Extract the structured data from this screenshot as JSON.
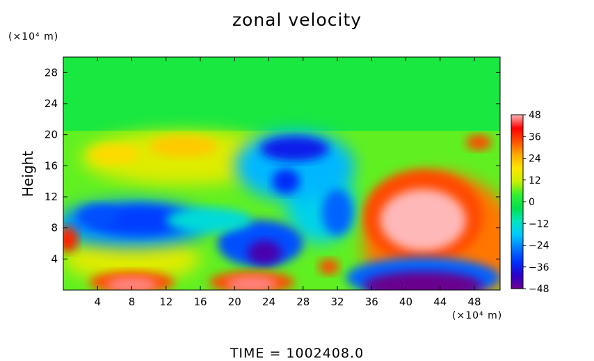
{
  "title": "zonal velocity",
  "footer": "TIME = 1002408.0",
  "colors": {
    "background": "#ffffff",
    "scale": [
      "#6b008e",
      "#2a00c8",
      "#0030ff",
      "#0078ff",
      "#00c8ff",
      "#00e6c0",
      "#00e050",
      "#30f030",
      "#c8f000",
      "#ffe600",
      "#ffaa00",
      "#ff5000",
      "#ff0000",
      "#ffb8b8"
    ]
  },
  "chart_data": {
    "type": "heatmap",
    "title": "zonal velocity",
    "xlabel": "",
    "ylabel": "Height",
    "x_unit_label": "(×10⁴ m)",
    "y_unit_label": "(×10⁴ m)",
    "xlim": [
      0,
      51
    ],
    "ylim": [
      0,
      30
    ],
    "x_ticks": [
      4,
      8,
      12,
      16,
      20,
      24,
      28,
      32,
      36,
      40,
      44,
      48
    ],
    "y_ticks": [
      4,
      8,
      12,
      16,
      20,
      24,
      28
    ],
    "colorbar": {
      "range": [
        -48,
        48
      ],
      "tick_values": [
        48,
        36,
        24,
        12,
        0,
        -12,
        -24,
        -36,
        -48
      ],
      "tick_labels": [
        "48",
        "36",
        "24",
        "12",
        "0",
        "−12",
        "−24",
        "−36",
        "−48"
      ]
    },
    "approx_features": [
      {
        "x": 42,
        "y": 9,
        "value": 48
      },
      {
        "x": 42,
        "y": 1,
        "value": -48
      },
      {
        "x": 23,
        "y": 5,
        "value": -44
      },
      {
        "x": 8,
        "y": 1,
        "value": 44
      },
      {
        "x": 22,
        "y": 1,
        "value": 44
      },
      {
        "x": 26,
        "y": 18,
        "value": -34
      },
      {
        "x": 10,
        "y": 8,
        "value": -30
      },
      {
        "x": 32,
        "y": 10,
        "value": -28
      },
      {
        "x": 14,
        "y": 19,
        "value": 20
      },
      {
        "x": 25,
        "y": 25,
        "value": 0
      }
    ]
  }
}
